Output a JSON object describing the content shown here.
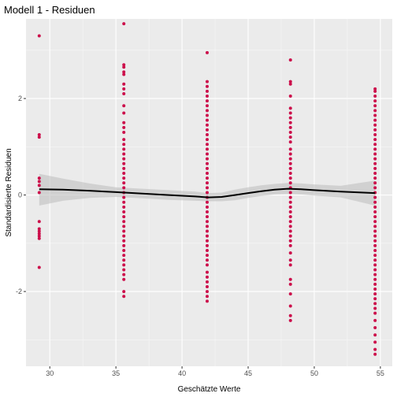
{
  "chart_data": {
    "type": "scatter",
    "title": "Modell 1 - Residuen",
    "xlabel": "Geschätzte Werte",
    "ylabel": "Standardisierte Residuen",
    "xlim": [
      28.2,
      55.9
    ],
    "ylim": [
      -3.55,
      3.65
    ],
    "x_ticks": [
      30,
      35,
      40,
      45,
      50,
      55
    ],
    "y_ticks": [
      -2,
      0,
      2
    ],
    "grid": true,
    "point_color": "#cc0f4b",
    "smooth_color": "#000000",
    "band_color": "#bfbfbf",
    "panel_bg": "#ebebeb",
    "groups": [
      {
        "x": 29.2,
        "y": [
          3.3,
          1.25,
          1.2,
          0.35,
          0.28,
          0.2,
          0.05,
          -0.55,
          -0.7,
          -0.75,
          -0.8,
          -0.85,
          -0.9,
          -1.5
        ]
      },
      {
        "x": 35.6,
        "y": [
          3.55,
          2.7,
          2.65,
          2.55,
          2.5,
          2.3,
          2.2,
          2.1,
          1.85,
          1.7,
          1.5,
          1.4,
          1.3,
          1.15,
          1.05,
          0.95,
          0.85,
          0.75,
          0.65,
          0.55,
          0.45,
          0.35,
          0.25,
          0.15,
          0.05,
          -0.05,
          -0.15,
          -0.25,
          -0.35,
          -0.45,
          -0.55,
          -0.65,
          -0.75,
          -0.85,
          -0.95,
          -1.05,
          -1.15,
          -1.25,
          -1.35,
          -1.45,
          -1.55,
          -1.65,
          -1.75,
          -2.0,
          -2.1
        ]
      },
      {
        "x": 41.9,
        "y": [
          2.95,
          2.35,
          2.25,
          2.15,
          2.05,
          1.95,
          1.85,
          1.75,
          1.65,
          1.55,
          1.45,
          1.35,
          1.25,
          1.15,
          1.05,
          0.95,
          0.85,
          0.75,
          0.65,
          0.55,
          0.45,
          0.35,
          0.25,
          0.15,
          0.05,
          -0.05,
          -0.15,
          -0.25,
          -0.35,
          -0.45,
          -0.55,
          -0.65,
          -0.75,
          -0.85,
          -0.95,
          -1.05,
          -1.15,
          -1.25,
          -1.35,
          -1.45,
          -1.6,
          -1.7,
          -1.8,
          -1.9,
          -2.0,
          -2.1,
          -2.2
        ]
      },
      {
        "x": 48.2,
        "y": [
          2.8,
          2.35,
          2.3,
          2.05,
          1.8,
          1.7,
          1.6,
          1.5,
          1.4,
          1.3,
          1.2,
          1.1,
          0.95,
          0.85,
          0.75,
          0.65,
          0.55,
          0.45,
          0.35,
          0.25,
          0.15,
          0.05,
          -0.05,
          -0.15,
          -0.25,
          -0.35,
          -0.45,
          -0.55,
          -0.65,
          -0.75,
          -0.85,
          -0.95,
          -1.05,
          -1.2,
          -1.35,
          -1.45,
          -1.75,
          -1.85,
          -2.05,
          -2.3,
          -2.5,
          -2.6
        ]
      },
      {
        "x": 54.6,
        "y": [
          2.2,
          2.15,
          2.05,
          1.95,
          1.85,
          1.75,
          1.65,
          1.55,
          1.45,
          1.35,
          1.25,
          1.15,
          1.05,
          0.95,
          0.85,
          0.75,
          0.65,
          0.55,
          0.45,
          0.35,
          0.25,
          0.15,
          0.05,
          -0.05,
          -0.15,
          -0.25,
          -0.35,
          -0.45,
          -0.55,
          -0.65,
          -0.75,
          -0.85,
          -0.95,
          -1.05,
          -1.15,
          -1.25,
          -1.35,
          -1.45,
          -1.55,
          -1.65,
          -1.75,
          -1.85,
          -1.95,
          -2.05,
          -2.15,
          -2.25,
          -2.35,
          -2.45,
          -2.6,
          -2.75,
          -2.9,
          -3.05,
          -3.2,
          -3.3
        ]
      }
    ],
    "smooth": {
      "x": [
        29.2,
        31.0,
        33.0,
        35.0,
        37.0,
        39.0,
        41.0,
        42.0,
        43.0,
        44.0,
        45.0,
        46.0,
        47.0,
        48.0,
        49.0,
        50.0,
        52.0,
        54.6
      ],
      "y": [
        0.12,
        0.11,
        0.09,
        0.06,
        0.03,
        0.0,
        -0.03,
        -0.05,
        -0.04,
        0.0,
        0.04,
        0.08,
        0.11,
        0.13,
        0.12,
        0.1,
        0.07,
        0.04
      ],
      "lower": [
        -0.22,
        -0.12,
        -0.06,
        -0.04,
        -0.07,
        -0.1,
        -0.12,
        -0.13,
        -0.13,
        -0.11,
        -0.06,
        -0.02,
        0.01,
        0.02,
        0.01,
        -0.01,
        -0.05,
        -0.22
      ],
      "upper": [
        0.44,
        0.34,
        0.24,
        0.16,
        0.13,
        0.1,
        0.07,
        0.04,
        0.05,
        0.11,
        0.16,
        0.2,
        0.23,
        0.25,
        0.24,
        0.22,
        0.19,
        0.3
      ]
    }
  }
}
